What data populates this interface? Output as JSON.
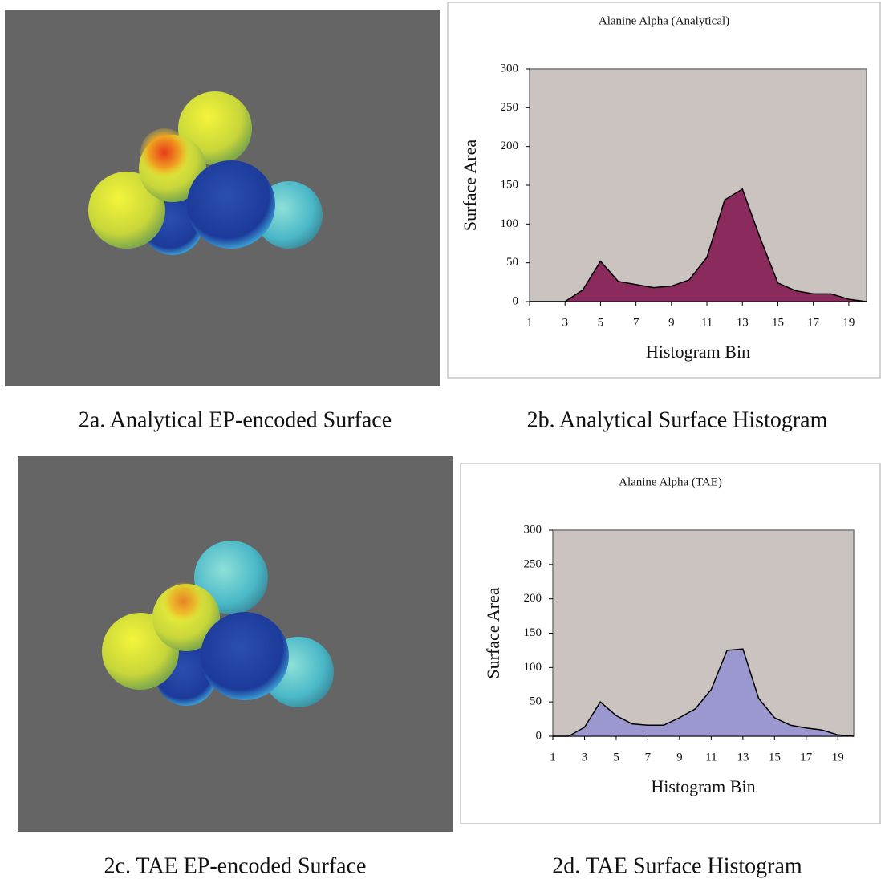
{
  "chart_data": [
    {
      "type": "area",
      "title": "Alanine Alpha (Analytical)",
      "x_label": "Histogram Bin",
      "y_label": "Surface Area",
      "x": [
        1,
        2,
        3,
        4,
        5,
        6,
        7,
        8,
        9,
        10,
        11,
        12,
        13,
        14,
        15,
        16,
        17,
        18,
        19,
        20
      ],
      "values": [
        0,
        0,
        0,
        15,
        52,
        26,
        22,
        18,
        20,
        28,
        57,
        131,
        145,
        82,
        24,
        14,
        10,
        10,
        3,
        0
      ],
      "color": "#8b2a5c",
      "xlim": [
        1,
        20
      ],
      "xticks": [
        1,
        3,
        5,
        7,
        9,
        11,
        13,
        15,
        17,
        19
      ],
      "ylim": [
        0,
        300
      ],
      "yticks": [
        0,
        50,
        100,
        150,
        200,
        250,
        300
      ]
    },
    {
      "type": "area",
      "title": "Alanine Alpha (TAE)",
      "x_label": "Histogram Bin",
      "y_label": "Surface Area",
      "x": [
        1,
        2,
        3,
        4,
        5,
        6,
        7,
        8,
        9,
        10,
        11,
        12,
        13,
        14,
        15,
        16,
        17,
        18,
        19,
        20
      ],
      "values": [
        0,
        0,
        13,
        50,
        30,
        18,
        16,
        16,
        27,
        40,
        68,
        125,
        127,
        55,
        27,
        16,
        12,
        9,
        2,
        0
      ],
      "color": "#9b98d0",
      "xlim": [
        1,
        20
      ],
      "xticks": [
        1,
        3,
        5,
        7,
        9,
        11,
        13,
        15,
        17,
        19
      ],
      "ylim": [
        0,
        300
      ],
      "yticks": [
        0,
        50,
        100,
        150,
        200,
        250,
        300
      ]
    }
  ],
  "captions": [
    "2a. Analytical EP-encoded Surface",
    "2b. Analytical Surface Histogram",
    "2c. TAE EP-encoded Surface",
    "2d. TAE Surface Histogram"
  ]
}
